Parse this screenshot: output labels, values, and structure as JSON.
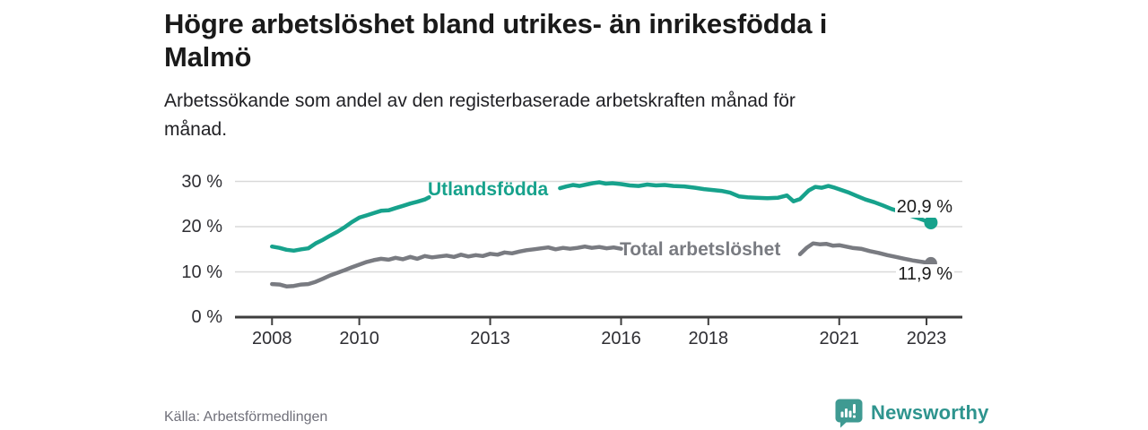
{
  "chart_data": {
    "type": "line",
    "title": "Högre arbetslöshet bland utrikes- än inrikesfödda i Malmö",
    "title_lines": [
      "Högre arbetslöshet bland utrikes- än inrikesfödda i",
      "Malmö"
    ],
    "subtitle": "Arbetssökande som andel av den registerbaserade arbetskraften månad för månad.",
    "subtitle_lines": [
      "Arbetssökande som andel av den registerbaserade arbetskraften månad för",
      "månad."
    ],
    "grid": "horizontal",
    "legend": "inline-labels-on-lines",
    "x_axis": {
      "tick_years": [
        2008,
        2010,
        2013,
        2016,
        2018,
        2021,
        2023
      ],
      "tick_labels": [
        "2008",
        "2010",
        "2013",
        "2016",
        "2018",
        "2021",
        "2023"
      ],
      "range_years": [
        2007.15,
        2023.8
      ]
    },
    "y_axis": {
      "tick_values": [
        0,
        10,
        20,
        30
      ],
      "tick_labels": [
        "0 %",
        "10 %",
        "20 %",
        "30 %"
      ],
      "range": [
        0,
        31.5
      ],
      "unit": "%"
    },
    "series": [
      {
        "name": "Utlandsfödda",
        "color": "#17a28c",
        "end_value": 20.9,
        "end_label": "20,9 %",
        "label_gap_years": [
          2011.62,
          2014.52
        ],
        "points": [
          [
            2008.0,
            15.6
          ],
          [
            2008.17,
            15.3
          ],
          [
            2008.33,
            14.9
          ],
          [
            2008.5,
            14.7
          ],
          [
            2008.67,
            15.0
          ],
          [
            2008.83,
            15.2
          ],
          [
            2009.0,
            16.3
          ],
          [
            2009.17,
            17.1
          ],
          [
            2009.33,
            18.0
          ],
          [
            2009.5,
            18.9
          ],
          [
            2009.67,
            19.9
          ],
          [
            2009.83,
            21.0
          ],
          [
            2010.0,
            22.0
          ],
          [
            2010.17,
            22.5
          ],
          [
            2010.33,
            23.0
          ],
          [
            2010.5,
            23.5
          ],
          [
            2010.67,
            23.6
          ],
          [
            2010.83,
            24.1
          ],
          [
            2011.0,
            24.6
          ],
          [
            2011.17,
            25.1
          ],
          [
            2011.33,
            25.5
          ],
          [
            2011.5,
            26.0
          ],
          [
            2011.6,
            26.5
          ],
          [
            2011.8,
            26.7
          ],
          [
            2012.0,
            26.9
          ],
          [
            2012.25,
            27.1
          ],
          [
            2012.5,
            27.3
          ],
          [
            2012.75,
            27.2
          ],
          [
            2013.0,
            27.5
          ],
          [
            2013.25,
            27.7
          ],
          [
            2013.5,
            27.9
          ],
          [
            2013.75,
            28.0
          ],
          [
            2014.0,
            28.1
          ],
          [
            2014.25,
            28.2
          ],
          [
            2014.45,
            28.3
          ],
          [
            2014.6,
            28.5
          ],
          [
            2014.75,
            28.9
          ],
          [
            2014.9,
            29.2
          ],
          [
            2015.05,
            29.0
          ],
          [
            2015.2,
            29.3
          ],
          [
            2015.35,
            29.6
          ],
          [
            2015.5,
            29.8
          ],
          [
            2015.65,
            29.5
          ],
          [
            2015.8,
            29.6
          ],
          [
            2016.0,
            29.4
          ],
          [
            2016.2,
            29.1
          ],
          [
            2016.4,
            29.0
          ],
          [
            2016.6,
            29.3
          ],
          [
            2016.8,
            29.1
          ],
          [
            2017.0,
            29.2
          ],
          [
            2017.2,
            29.0
          ],
          [
            2017.45,
            28.9
          ],
          [
            2017.7,
            28.6
          ],
          [
            2017.9,
            28.3
          ],
          [
            2018.1,
            28.1
          ],
          [
            2018.3,
            27.9
          ],
          [
            2018.5,
            27.5
          ],
          [
            2018.7,
            26.7
          ],
          [
            2018.9,
            26.5
          ],
          [
            2019.1,
            26.4
          ],
          [
            2019.35,
            26.3
          ],
          [
            2019.6,
            26.4
          ],
          [
            2019.8,
            26.9
          ],
          [
            2019.95,
            25.6
          ],
          [
            2020.1,
            26.1
          ],
          [
            2020.3,
            28.0
          ],
          [
            2020.45,
            28.8
          ],
          [
            2020.6,
            28.6
          ],
          [
            2020.75,
            29.0
          ],
          [
            2020.9,
            28.6
          ],
          [
            2021.05,
            28.1
          ],
          [
            2021.2,
            27.6
          ],
          [
            2021.4,
            26.8
          ],
          [
            2021.6,
            26.0
          ],
          [
            2021.8,
            25.4
          ],
          [
            2022.0,
            24.7
          ],
          [
            2022.2,
            23.9
          ],
          [
            2022.4,
            23.3
          ],
          [
            2022.6,
            22.5
          ],
          [
            2022.8,
            21.9
          ],
          [
            2023.0,
            21.2
          ],
          [
            2023.1,
            20.9
          ]
        ]
      },
      {
        "name": "Total arbetslöshet",
        "color": "#797b81",
        "end_value": 11.9,
        "end_label": "11,9 %",
        "label_gap_years": [
          2016.06,
          2020.04
        ],
        "points": [
          [
            2008.0,
            7.3
          ],
          [
            2008.17,
            7.2
          ],
          [
            2008.33,
            6.8
          ],
          [
            2008.5,
            6.9
          ],
          [
            2008.67,
            7.2
          ],
          [
            2008.83,
            7.3
          ],
          [
            2009.0,
            7.8
          ],
          [
            2009.17,
            8.5
          ],
          [
            2009.33,
            9.2
          ],
          [
            2009.5,
            9.8
          ],
          [
            2009.67,
            10.4
          ],
          [
            2009.83,
            11.0
          ],
          [
            2010.0,
            11.6
          ],
          [
            2010.17,
            12.2
          ],
          [
            2010.33,
            12.6
          ],
          [
            2010.5,
            12.9
          ],
          [
            2010.67,
            12.7
          ],
          [
            2010.83,
            13.1
          ],
          [
            2011.0,
            12.8
          ],
          [
            2011.17,
            13.3
          ],
          [
            2011.33,
            12.9
          ],
          [
            2011.5,
            13.5
          ],
          [
            2011.67,
            13.2
          ],
          [
            2011.83,
            13.4
          ],
          [
            2012.0,
            13.6
          ],
          [
            2012.17,
            13.3
          ],
          [
            2012.33,
            13.8
          ],
          [
            2012.5,
            13.4
          ],
          [
            2012.67,
            13.7
          ],
          [
            2012.83,
            13.5
          ],
          [
            2013.0,
            14.0
          ],
          [
            2013.17,
            13.8
          ],
          [
            2013.33,
            14.3
          ],
          [
            2013.5,
            14.1
          ],
          [
            2013.67,
            14.5
          ],
          [
            2013.83,
            14.8
          ],
          [
            2014.0,
            15.0
          ],
          [
            2014.17,
            15.2
          ],
          [
            2014.33,
            15.4
          ],
          [
            2014.5,
            15.0
          ],
          [
            2014.67,
            15.3
          ],
          [
            2014.83,
            15.1
          ],
          [
            2015.0,
            15.3
          ],
          [
            2015.17,
            15.6
          ],
          [
            2015.33,
            15.3
          ],
          [
            2015.5,
            15.5
          ],
          [
            2015.67,
            15.2
          ],
          [
            2015.83,
            15.4
          ],
          [
            2016.0,
            15.1
          ],
          [
            2016.25,
            15.0
          ],
          [
            2016.5,
            14.9
          ],
          [
            2016.75,
            15.0
          ],
          [
            2017.0,
            14.9
          ],
          [
            2017.25,
            14.8
          ],
          [
            2017.5,
            14.7
          ],
          [
            2017.75,
            14.5
          ],
          [
            2018.0,
            14.4
          ],
          [
            2018.25,
            14.3
          ],
          [
            2018.5,
            14.1
          ],
          [
            2018.75,
            14.0
          ],
          [
            2019.0,
            13.8
          ],
          [
            2019.25,
            13.7
          ],
          [
            2019.5,
            13.6
          ],
          [
            2019.75,
            13.5
          ],
          [
            2019.95,
            13.6
          ],
          [
            2020.1,
            13.9
          ],
          [
            2020.25,
            15.3
          ],
          [
            2020.4,
            16.3
          ],
          [
            2020.55,
            16.1
          ],
          [
            2020.7,
            16.2
          ],
          [
            2020.85,
            15.8
          ],
          [
            2021.0,
            15.9
          ],
          [
            2021.15,
            15.6
          ],
          [
            2021.3,
            15.3
          ],
          [
            2021.5,
            15.1
          ],
          [
            2021.7,
            14.6
          ],
          [
            2021.9,
            14.2
          ],
          [
            2022.1,
            13.7
          ],
          [
            2022.3,
            13.3
          ],
          [
            2022.5,
            12.9
          ],
          [
            2022.7,
            12.5
          ],
          [
            2022.9,
            12.2
          ],
          [
            2023.1,
            11.9
          ]
        ]
      }
    ]
  },
  "footer": {
    "source": "Källa: Arbetsförmedlingen",
    "brand": "Newsworthy",
    "brand_icon_name": "speech-bubble-bar-chart-icon"
  },
  "colors": {
    "accent_teal": "#17a28c",
    "line_gray": "#797b81",
    "axis": "#3d3d3d",
    "grid": "#d9d9d9",
    "title_text": "#1a1a1a",
    "muted_text": "#70707a",
    "brand_teal": "#2e948e",
    "brand_icon_fill": "#3f9a92"
  }
}
